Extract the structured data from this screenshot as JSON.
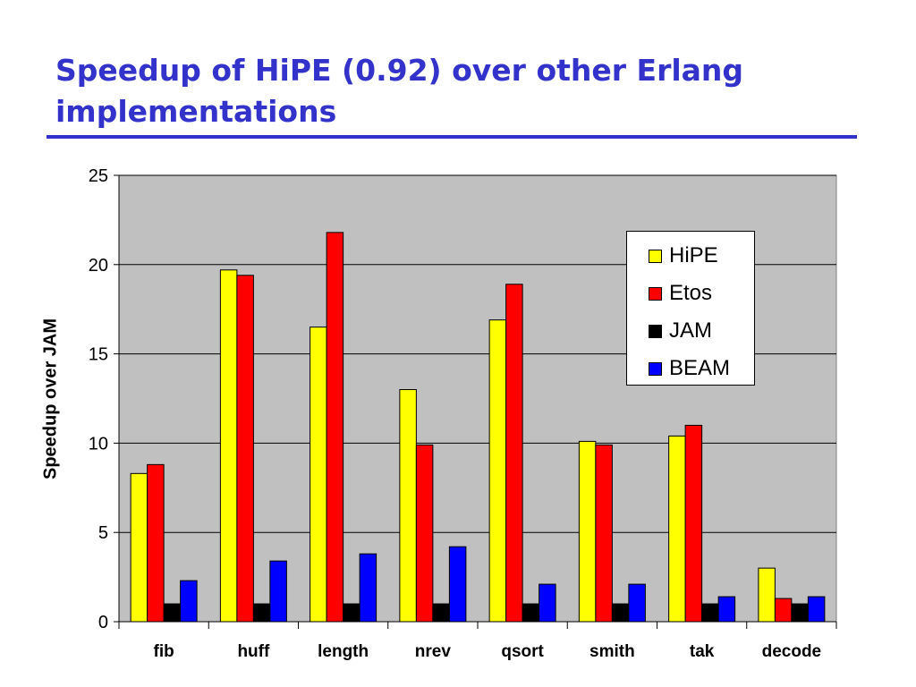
{
  "slide": {
    "title_line1": "Speedup of HiPE (0.92) over other Erlang",
    "title_line2": "implementations"
  },
  "chart_data": {
    "type": "bar",
    "title": "",
    "xlabel": "",
    "ylabel": "Speedup over JAM",
    "ylim": [
      0,
      25
    ],
    "yticks": [
      0,
      5,
      10,
      15,
      20,
      25
    ],
    "grid": true,
    "legend_position": "top-right",
    "categories": [
      "fib",
      "huff",
      "length",
      "nrev",
      "qsort",
      "smith",
      "tak",
      "decode"
    ],
    "series": [
      {
        "name": "HiPE",
        "color": "#ffff00",
        "values": [
          8.3,
          19.7,
          16.5,
          13.0,
          16.9,
          10.1,
          10.4,
          3.0
        ]
      },
      {
        "name": "Etos",
        "color": "#ff0000",
        "values": [
          8.8,
          19.4,
          21.8,
          9.9,
          18.9,
          9.9,
          11.0,
          1.3
        ]
      },
      {
        "name": "JAM",
        "color": "#000000",
        "values": [
          1.0,
          1.0,
          1.0,
          1.0,
          1.0,
          1.0,
          1.0,
          1.0
        ]
      },
      {
        "name": "BEAM",
        "color": "#0000ff",
        "values": [
          2.3,
          3.4,
          3.8,
          4.2,
          2.1,
          2.1,
          1.4,
          1.4
        ]
      }
    ],
    "plot_background": "#c0c0c0"
  }
}
